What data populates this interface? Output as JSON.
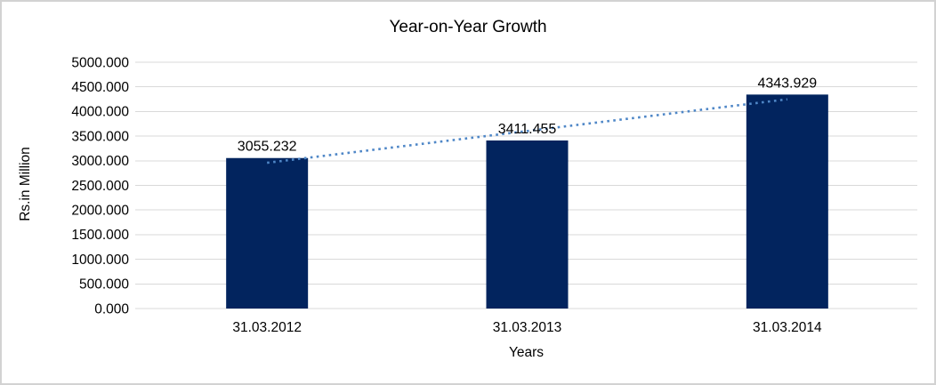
{
  "window": {
    "border_color": "#d2d2d2",
    "background": "#ffffff"
  },
  "chart_data": {
    "type": "bar",
    "title": "Year-on-Year Growth",
    "xlabel": "Years",
    "ylabel": "Rs.in Million",
    "categories": [
      "31.03.2012",
      "31.03.2013",
      "31.03.2014"
    ],
    "values": [
      3055.232,
      3411.455,
      4343.929
    ],
    "data_labels": [
      "3055.232",
      "3411.455",
      "4343.929"
    ],
    "ylim": [
      0,
      5000
    ],
    "ytick_step": 500,
    "yticks": [
      "0.000",
      "500.000",
      "1000.000",
      "1500.000",
      "2000.000",
      "2500.000",
      "3000.000",
      "3500.000",
      "4000.000",
      "4500.000",
      "5000.000"
    ],
    "grid": true,
    "legend_position": "none",
    "trendline": {
      "type": "linear",
      "style": "dotted"
    },
    "colors": {
      "bar": "#02245e",
      "trendline": "#4f87c7",
      "gridline": "#d9d9d9",
      "text": "#000000"
    }
  }
}
